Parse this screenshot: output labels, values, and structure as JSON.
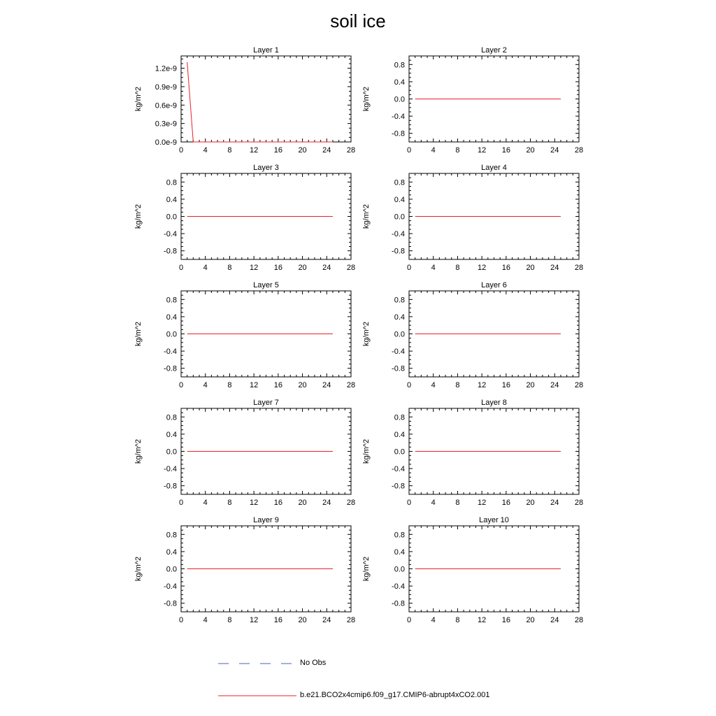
{
  "figure": {
    "title": "soil ice"
  },
  "colors": {
    "model_line": "#e8202a",
    "obs_line": "#4a5fc1",
    "axis": "#000000"
  },
  "legend": {
    "entries": [
      {
        "label": "No Obs",
        "style": "dashed",
        "color": "#4a5fc1"
      },
      {
        "label": "b.e21.BCO2x4cmip6.f09_g17.CMIP6-abrupt4xCO2.001",
        "style": "solid",
        "color": "#e8202a"
      }
    ]
  },
  "chart_data": [
    {
      "type": "line",
      "title": "Layer 1",
      "ylabel": "kg/m^2",
      "xlim": [
        0,
        28
      ],
      "xticks": [
        0,
        4,
        8,
        12,
        16,
        20,
        24,
        28
      ],
      "ylim": [
        0,
        1.4e-09
      ],
      "yticks": [
        0,
        3e-10,
        6e-10,
        9e-10,
        1.2e-09
      ],
      "yticklabels": [
        "0.0e-9",
        "0.3e-9",
        "0.6e-9",
        "0.9e-9",
        "1.2e-9"
      ],
      "series": [
        {
          "x": [
            1,
            2,
            3,
            4,
            5,
            6,
            7,
            8,
            9,
            10,
            11,
            12,
            13,
            14,
            15,
            16,
            17,
            18,
            19,
            20,
            21,
            22,
            23,
            24,
            25
          ],
          "y": [
            1.3e-09,
            0,
            0,
            0,
            0,
            0,
            0,
            0,
            0,
            0,
            0,
            0,
            0,
            0,
            0,
            0,
            0,
            0,
            0,
            0,
            0,
            0,
            0,
            0,
            0
          ]
        }
      ]
    },
    {
      "type": "line",
      "title": "Layer 2",
      "ylabel": "kg/m^2",
      "xlim": [
        0,
        28
      ],
      "xticks": [
        0,
        4,
        8,
        12,
        16,
        20,
        24,
        28
      ],
      "ylim": [
        -1,
        1
      ],
      "yticks": [
        -0.8,
        -0.4,
        0,
        0.4,
        0.8
      ],
      "yticklabels": [
        "-0.8",
        "-0.4",
        "0.0",
        "0.4",
        "0.8"
      ],
      "series": [
        {
          "x": [
            1,
            25
          ],
          "y": [
            0,
            0
          ]
        }
      ]
    },
    {
      "type": "line",
      "title": "Layer 3",
      "ylabel": "kg/m^2",
      "xlim": [
        0,
        28
      ],
      "xticks": [
        0,
        4,
        8,
        12,
        16,
        20,
        24,
        28
      ],
      "ylim": [
        -1,
        1
      ],
      "yticks": [
        -0.8,
        -0.4,
        0,
        0.4,
        0.8
      ],
      "yticklabels": [
        "-0.8",
        "-0.4",
        "0.0",
        "0.4",
        "0.8"
      ],
      "series": [
        {
          "x": [
            1,
            25
          ],
          "y": [
            0,
            0
          ]
        }
      ]
    },
    {
      "type": "line",
      "title": "Layer 4",
      "ylabel": "kg/m^2",
      "xlim": [
        0,
        28
      ],
      "xticks": [
        0,
        4,
        8,
        12,
        16,
        20,
        24,
        28
      ],
      "ylim": [
        -1,
        1
      ],
      "yticks": [
        -0.8,
        -0.4,
        0,
        0.4,
        0.8
      ],
      "yticklabels": [
        "-0.8",
        "-0.4",
        "0.0",
        "0.4",
        "0.8"
      ],
      "series": [
        {
          "x": [
            1,
            25
          ],
          "y": [
            0,
            0
          ]
        }
      ]
    },
    {
      "type": "line",
      "title": "Layer 5",
      "ylabel": "kg/m^2",
      "xlim": [
        0,
        28
      ],
      "xticks": [
        0,
        4,
        8,
        12,
        16,
        20,
        24,
        28
      ],
      "ylim": [
        -1,
        1
      ],
      "yticks": [
        -0.8,
        -0.4,
        0,
        0.4,
        0.8
      ],
      "yticklabels": [
        "-0.8",
        "-0.4",
        "0.0",
        "0.4",
        "0.8"
      ],
      "series": [
        {
          "x": [
            1,
            25
          ],
          "y": [
            0,
            0
          ]
        }
      ]
    },
    {
      "type": "line",
      "title": "Layer 6",
      "ylabel": "kg/m^2",
      "xlim": [
        0,
        28
      ],
      "xticks": [
        0,
        4,
        8,
        12,
        16,
        20,
        24,
        28
      ],
      "ylim": [
        -1,
        1
      ],
      "yticks": [
        -0.8,
        -0.4,
        0,
        0.4,
        0.8
      ],
      "yticklabels": [
        "-0.8",
        "-0.4",
        "0.0",
        "0.4",
        "0.8"
      ],
      "series": [
        {
          "x": [
            1,
            25
          ],
          "y": [
            0,
            0
          ]
        }
      ]
    },
    {
      "type": "line",
      "title": "Layer 7",
      "ylabel": "kg/m^2",
      "xlim": [
        0,
        28
      ],
      "xticks": [
        0,
        4,
        8,
        12,
        16,
        20,
        24,
        28
      ],
      "ylim": [
        -1,
        1
      ],
      "yticks": [
        -0.8,
        -0.4,
        0,
        0.4,
        0.8
      ],
      "yticklabels": [
        "-0.8",
        "-0.4",
        "0.0",
        "0.4",
        "0.8"
      ],
      "series": [
        {
          "x": [
            1,
            25
          ],
          "y": [
            0,
            0
          ]
        }
      ]
    },
    {
      "type": "line",
      "title": "Layer 8",
      "ylabel": "kg/m^2",
      "xlim": [
        0,
        28
      ],
      "xticks": [
        0,
        4,
        8,
        12,
        16,
        20,
        24,
        28
      ],
      "ylim": [
        -1,
        1
      ],
      "yticks": [
        -0.8,
        -0.4,
        0,
        0.4,
        0.8
      ],
      "yticklabels": [
        "-0.8",
        "-0.4",
        "0.0",
        "0.4",
        "0.8"
      ],
      "series": [
        {
          "x": [
            1,
            25
          ],
          "y": [
            0,
            0
          ]
        }
      ]
    },
    {
      "type": "line",
      "title": "Layer 9",
      "ylabel": "kg/m^2",
      "xlim": [
        0,
        28
      ],
      "xticks": [
        0,
        4,
        8,
        12,
        16,
        20,
        24,
        28
      ],
      "ylim": [
        -1,
        1
      ],
      "yticks": [
        -0.8,
        -0.4,
        0,
        0.4,
        0.8
      ],
      "yticklabels": [
        "-0.8",
        "-0.4",
        "0.0",
        "0.4",
        "0.8"
      ],
      "series": [
        {
          "x": [
            1,
            25
          ],
          "y": [
            0,
            0
          ]
        }
      ]
    },
    {
      "type": "line",
      "title": "Layer 10",
      "ylabel": "kg/m^2",
      "xlim": [
        0,
        28
      ],
      "xticks": [
        0,
        4,
        8,
        12,
        16,
        20,
        24,
        28
      ],
      "ylim": [
        -1,
        1
      ],
      "yticks": [
        -0.8,
        -0.4,
        0,
        0.4,
        0.8
      ],
      "yticklabels": [
        "-0.8",
        "-0.4",
        "0.0",
        "0.4",
        "0.8"
      ],
      "series": [
        {
          "x": [
            1,
            25
          ],
          "y": [
            0,
            0
          ]
        }
      ]
    }
  ]
}
